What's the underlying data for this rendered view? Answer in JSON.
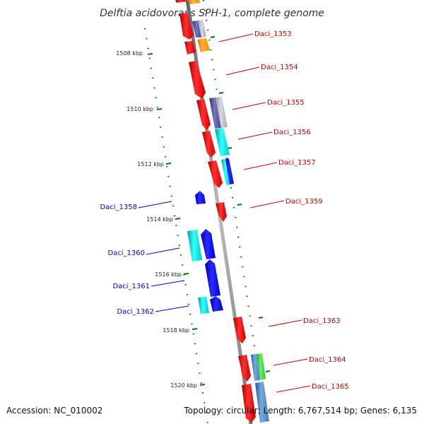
{
  "title": "Delftia acidovorans SPH-1, complete genome",
  "footer": {
    "accession": "Accession: NC_010002",
    "summary": "Topology: circular; Length: 6,767,514 bp; Genes: 6,135"
  },
  "ticks": [
    "1508 kbp",
    "1510 kbp",
    "1512 kbp",
    "1514 kbp",
    "1516 kbp",
    "1518 kbp",
    "1520 kbp"
  ],
  "genes_forward": [
    "Daci_1353",
    "Daci_1354",
    "Daci_1355",
    "Daci_1356",
    "Daci_1357",
    "Daci_1359",
    "Daci_1363",
    "Daci_1364",
    "Daci_1365"
  ],
  "genes_reverse": [
    "Daci_1358",
    "Daci_1360",
    "Daci_1361",
    "Daci_1362"
  ],
  "colors": {
    "forward_label": "#cc0000",
    "reverse_label": "#0000cc",
    "gene_red": "#ee0000",
    "gene_blue": "#0000ee",
    "gene_cyan": "#00cccc",
    "gene_orange": "#ff9900",
    "gene_purple": "#555599",
    "gene_green": "#33cc33",
    "gene_steel": "#4477bb",
    "backbone": "#888888",
    "tick": "#007700"
  }
}
